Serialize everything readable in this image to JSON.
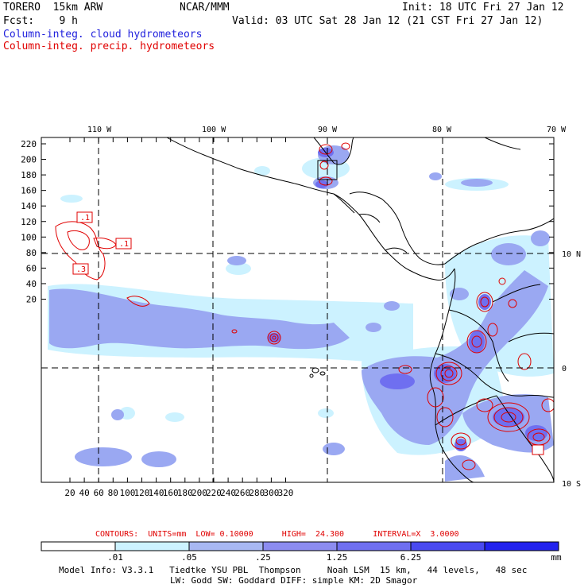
{
  "header": {
    "model": "TORERO  15km ARW",
    "org": "NCAR/MMM",
    "init": "Init: 18 UTC Fri 27 Jan 12",
    "fcst": "Fcst:    9 h",
    "valid": "Valid: 03 UTC Sat 28 Jan 12 (21 CST Fri 27 Jan 12)"
  },
  "legend": {
    "cloud": "Column-integ. cloud hydrometeors",
    "precip": "Column-integ. precip. hydrometeors"
  },
  "map": {
    "lon_labels": [
      "110 W",
      "100 W",
      "90 W",
      "80 W",
      "70 W"
    ],
    "lat_labels": [
      "10 N",
      "0",
      "10 S"
    ],
    "y_ticks": [
      "220",
      "200",
      "180",
      "160",
      "140",
      "120",
      "100",
      "80",
      "60",
      "40",
      "20"
    ],
    "x_ticks": [
      "20",
      "40",
      "60",
      "80",
      "100",
      "120",
      "140",
      "160",
      "180",
      "200",
      "220",
      "240",
      "260",
      "280",
      "300",
      "320"
    ],
    "contour_labels": [
      ".1",
      ".1",
      ".3"
    ],
    "colors": {
      "cloud_light": "#ccf2ff",
      "cloud_mid": "#9aa8f2",
      "cloud_dark": "#6f6ff0",
      "precip_contour": "#e00000",
      "coast": "#000000"
    }
  },
  "contours_info": {
    "text": "CONTOURS:  UNITS=mm  LOW= 0.10000      HIGH=  24.300      INTERVAL=X  3.0000"
  },
  "colorbar": {
    "labels": [
      ".01",
      ".05",
      ".25",
      "1.25",
      "6.25",
      "mm"
    ],
    "colors": [
      "#ffffff",
      "#ccf2ff",
      "#a8b8f2",
      "#8c8cf0",
      "#6f6ff0",
      "#4a4af0",
      "#2222ee"
    ]
  },
  "model_info": {
    "line1": "Model Info: V3.3.1   Tiedtke YSU PBL  Thompson     Noah LSM  15 km,   44 levels,   48 sec",
    "line2": "LW: Godd SW: Goddard DIFF: simple KM: 2D Smagor"
  }
}
